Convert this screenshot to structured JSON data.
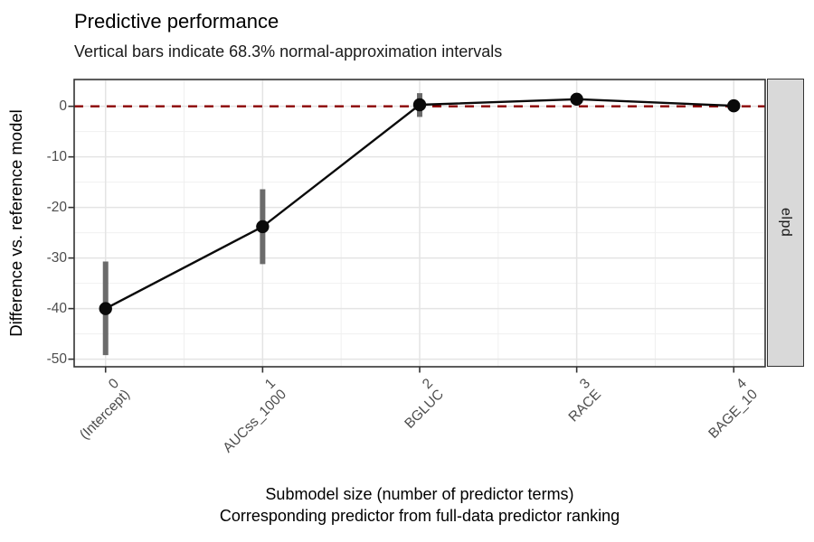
{
  "colors": {
    "background": "#ffffff",
    "panel_background": "#ffffff",
    "panel_border": "#333333",
    "grid_major": "#e4e4e4",
    "grid_minor": "#f0f0f0",
    "reference_line": "#8B0000",
    "interval_bar": "#6b6b6b",
    "point": "#0a0a0a",
    "trend_line": "#0a0a0a",
    "tick_mark": "#333333",
    "tick_label": "#4d4d4d",
    "strip_fill": "#d9d9d9",
    "strip_text": "#1a1a1a"
  },
  "chart_data": {
    "type": "line",
    "title": "Predictive performance",
    "subtitle": "Vertical bars indicate 68.3% normal-approximation intervals",
    "facet_label": "elpd",
    "x": [
      0,
      1,
      2,
      3,
      4
    ],
    "x_tick_labels": [
      [
        "0",
        "(Intercept)"
      ],
      [
        "1",
        "AUCss_1000"
      ],
      [
        "2",
        "BGLUC"
      ],
      [
        "3",
        "RACE"
      ],
      [
        "4",
        "BAGE_10"
      ]
    ],
    "series": [
      {
        "name": "elpd difference vs. reference model",
        "values": [
          -40,
          -23.8,
          0.3,
          1.4,
          0.1
        ],
        "interval_lower": [
          -49.2,
          -31.2,
          -2.1,
          0.2,
          -0.9
        ],
        "interval_upper": [
          -30.7,
          -16.4,
          2.6,
          2.6,
          1.1
        ]
      }
    ],
    "reference_line": {
      "y": 0,
      "style": "dashed"
    },
    "xlabel": "Submodel size (number of predictor terms)",
    "xlabel_line2": "Corresponding predictor from full-data predictor ranking",
    "ylabel": "Difference vs. reference model",
    "yticks": [
      0,
      -10,
      -20,
      -30,
      -40,
      -50
    ],
    "yticks_minor": [
      5,
      -5,
      -15,
      -25,
      -35,
      -45
    ],
    "xticks_minor": [
      0.5,
      1.5,
      2.5,
      3.5
    ],
    "ylim": [
      -51.5,
      5.3
    ],
    "xlim": [
      -0.2,
      4.2
    ],
    "grid": "major+minor",
    "legend": "none"
  }
}
